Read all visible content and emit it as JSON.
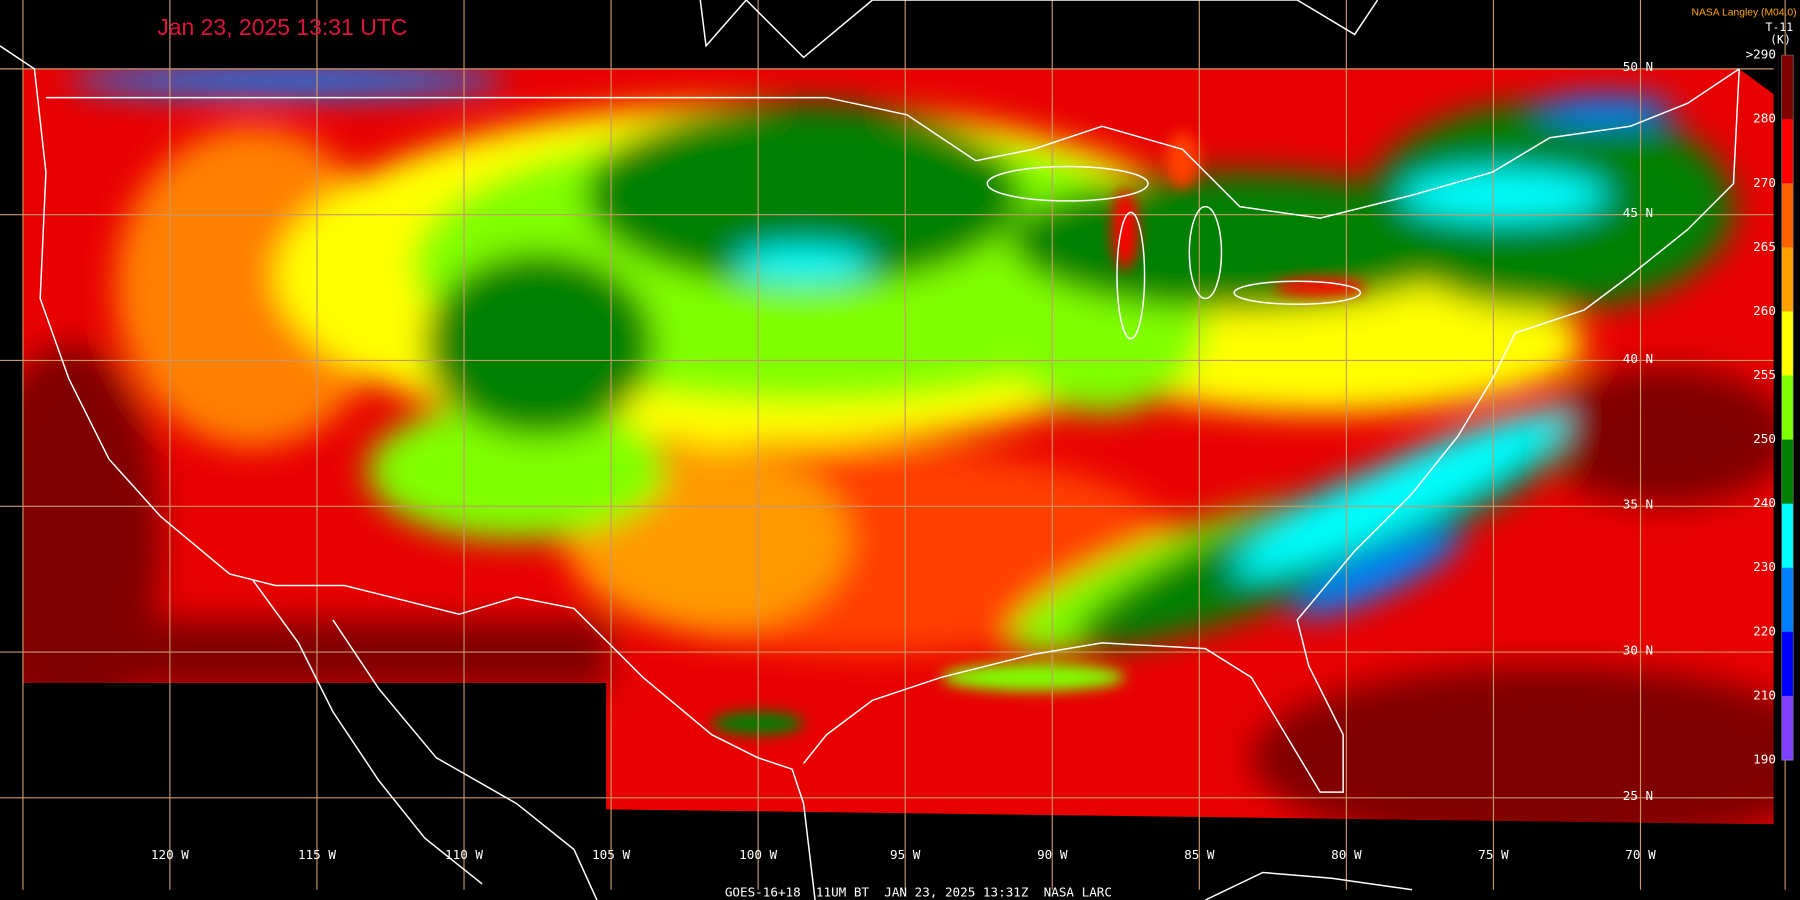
{
  "timestamp": "Jan 23, 2025 13:31 UTC",
  "credit": "NASA Langley (M04.0)",
  "colorbar": {
    "title": "T-11",
    "unit": "(K)",
    "labels": [
      ">290",
      "280",
      "270",
      "265",
      "260",
      "255",
      "250",
      "240",
      "230",
      "220",
      "210",
      "190"
    ],
    "colors": [
      "#800000",
      "#ff0000",
      "#ff6000",
      "#ffa000",
      "#ffff00",
      "#80ff00",
      "#008000",
      "#00ffff",
      "#0080ff",
      "#0000ff",
      "#8040ff"
    ]
  },
  "longitude_labels": [
    "120 W",
    "115 W",
    "110 W",
    "105 W",
    "100 W",
    "95 W",
    "90 W",
    "85 W",
    "80 W",
    "75 W",
    "70 W"
  ],
  "latitude_labels": [
    "50 N",
    "45 N",
    "40 N",
    "35 N",
    "30 N",
    "25 N"
  ],
  "footer": "GOES-16+18  11UM BT  JAN 23, 2025 13:31Z  NASA LARC"
}
